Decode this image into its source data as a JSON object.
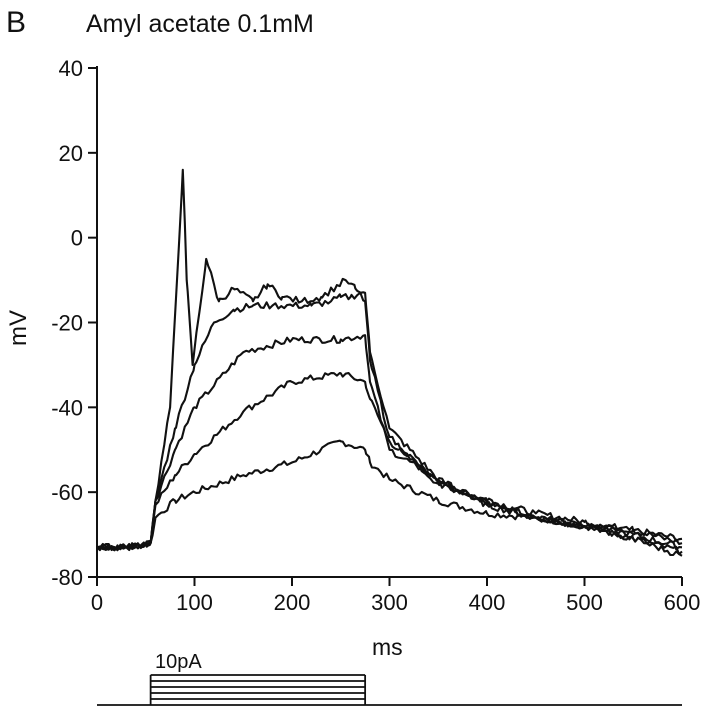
{
  "figure": {
    "panel_letter": "B",
    "title": "Amyl acetate 0.1mM",
    "xlabel": "ms",
    "ylabel": "mV",
    "stim_label": "10pA"
  },
  "chart_data": {
    "type": "line",
    "title": "Amyl acetate 0.1mM",
    "xlabel": "ms",
    "ylabel": "mV",
    "xlim": [
      0,
      600
    ],
    "ylim": [
      -80,
      40
    ],
    "xticks": [
      0,
      100,
      200,
      300,
      400,
      500,
      600
    ],
    "yticks": [
      40,
      20,
      0,
      -20,
      -40,
      -60,
      -80
    ],
    "xtick_labels": [
      "0",
      "100",
      "200",
      "300",
      "400",
      "500",
      "600"
    ],
    "ytick_labels": [
      "40",
      "20",
      "0",
      "-20",
      "-40",
      "-60",
      "-80"
    ],
    "grid": false,
    "series": [
      {
        "x": [
          0,
          30,
          55,
          60,
          80,
          100,
          150,
          200,
          250,
          275,
          280,
          300,
          350,
          400,
          450,
          500,
          550,
          600
        ],
        "values": [
          -73,
          -73,
          -72,
          -66,
          -62,
          -60,
          -56,
          -53,
          -48,
          -50,
          -53,
          -57,
          -62,
          -65,
          -66,
          -68,
          -69,
          -71
        ]
      },
      {
        "x": [
          0,
          30,
          55,
          60,
          80,
          100,
          150,
          200,
          250,
          275,
          280,
          300,
          350,
          400,
          450,
          500,
          550,
          600
        ],
        "values": [
          -73,
          -73,
          -72,
          -63,
          -56,
          -51,
          -41,
          -34,
          -32,
          -34,
          -38,
          -48,
          -58,
          -62,
          -65,
          -67,
          -69,
          -72
        ]
      },
      {
        "x": [
          0,
          30,
          55,
          60,
          80,
          100,
          150,
          200,
          250,
          275,
          280,
          300,
          350,
          400,
          450,
          500,
          550,
          600
        ],
        "values": [
          -73,
          -73,
          -72,
          -62,
          -50,
          -40,
          -27,
          -24,
          -24,
          -23,
          -34,
          -50,
          -57,
          -63,
          -66,
          -68,
          -71,
          -74
        ]
      },
      {
        "x": [
          0,
          30,
          55,
          60,
          80,
          100,
          120,
          140,
          160,
          180,
          200,
          220,
          240,
          250,
          260,
          270,
          275,
          280,
          300,
          350,
          400,
          450,
          500,
          550,
          600
        ],
        "values": [
          -73,
          -73,
          -72,
          -62,
          -45,
          -30,
          -20,
          -17,
          -16,
          -16,
          -16,
          -16,
          -15,
          -14,
          -14,
          -13,
          -13,
          -27,
          -45,
          -57,
          -63,
          -66,
          -68,
          -70,
          -73
        ]
      },
      {
        "x": [
          0,
          30,
          55,
          60,
          75,
          88,
          92,
          98,
          112,
          125,
          140,
          160,
          175,
          190,
          210,
          230,
          255,
          265,
          275,
          280,
          300,
          350,
          400,
          450,
          500,
          550,
          600
        ],
        "values": [
          -73,
          -73,
          -72,
          -62,
          -40,
          16,
          -10,
          -30,
          -5,
          -15,
          -12,
          -15,
          -11,
          -14,
          -15,
          -14,
          -10,
          -12,
          -15,
          -29,
          -47,
          -58,
          -62,
          -66,
          -68,
          -71,
          -75
        ]
      }
    ],
    "stimulus": {
      "label": "10pA",
      "onset_ms": 55,
      "offset_ms": 275,
      "steps": 5
    }
  }
}
